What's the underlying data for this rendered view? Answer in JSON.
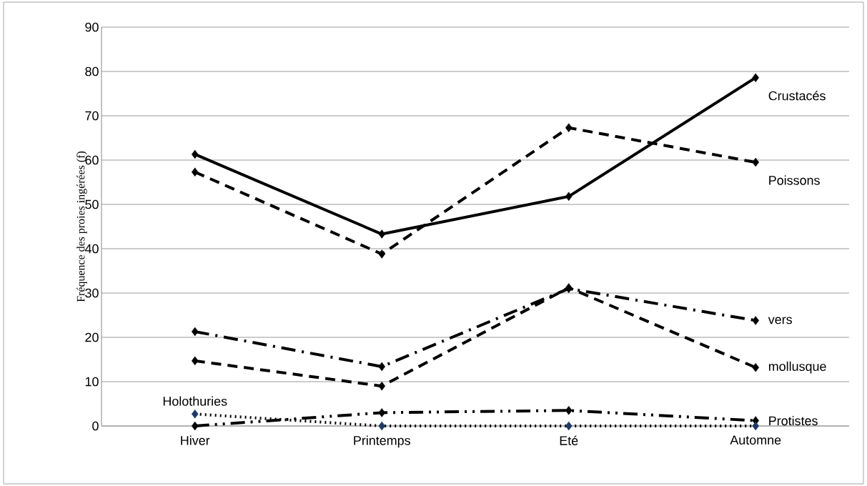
{
  "chart_data": {
    "type": "line",
    "ylabel": "Fréquence des proies ingérées (f)",
    "categories": [
      "Hiver",
      "Printemps",
      "Eté",
      "Automne"
    ],
    "series": [
      {
        "name": "Crustacés",
        "color": "#000000",
        "line_style": "solid",
        "values": [
          61.3,
          43.3,
          51.8,
          78.6
        ]
      },
      {
        "name": "Poissons",
        "color": "#000000",
        "line_style": "dashed",
        "values": [
          57.3,
          38.8,
          67.3,
          59.5
        ]
      },
      {
        "name": "vers",
        "color": "#000000",
        "line_style": "dashdot",
        "values": [
          21.3,
          13.4,
          31.0,
          23.8
        ]
      },
      {
        "name": "mollusque",
        "color": "#000000",
        "line_style": "dashed",
        "values": [
          14.7,
          9.0,
          31.2,
          13.2
        ]
      },
      {
        "name": "Protistes",
        "color": "#000000",
        "line_style": "dashdotdot",
        "values": [
          0.0,
          3.0,
          3.5,
          1.2
        ]
      },
      {
        "name": "Holothuries",
        "color": "#1f3864",
        "line_style": "dotted",
        "values": [
          2.7,
          0.0,
          0.0,
          0.0
        ]
      }
    ],
    "ylim": [
      0,
      90
    ],
    "yticks": [
      0,
      10,
      20,
      30,
      40,
      50,
      60,
      70,
      80,
      90
    ],
    "grid": "y",
    "marker": "diamond"
  }
}
